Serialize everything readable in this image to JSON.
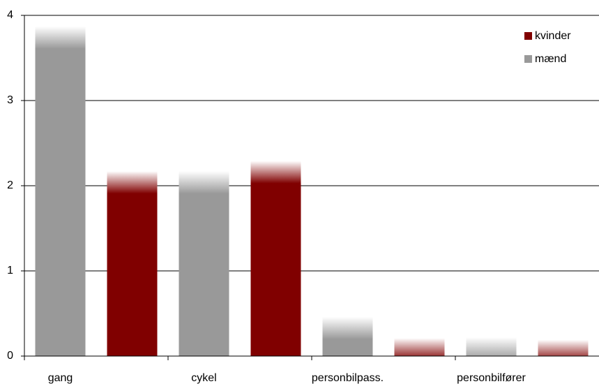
{
  "chart_data": {
    "type": "bar",
    "categories": [
      "gang",
      "cykel",
      "personbilpass.",
      "personbilfører"
    ],
    "series": [
      {
        "name": "mænd",
        "color": "#999999",
        "values": [
          3.87,
          2.17,
          0.46,
          0.22
        ]
      },
      {
        "name": "kvinder",
        "color": "#800000",
        "values": [
          2.17,
          2.29,
          0.21,
          0.19
        ]
      }
    ],
    "ylim": [
      0,
      4
    ],
    "yticks": [
      0,
      1,
      2,
      3,
      4
    ],
    "grid": true,
    "legend": "upper right"
  }
}
